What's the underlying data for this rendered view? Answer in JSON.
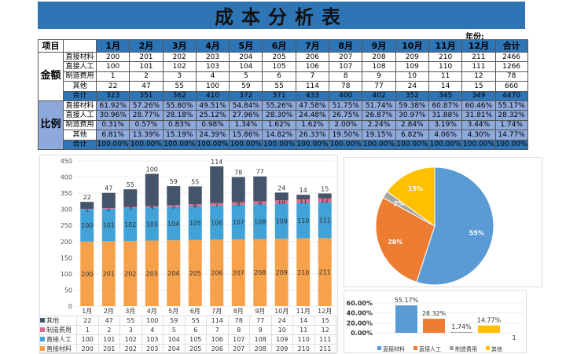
{
  "title": "成本分析表",
  "year_label": "年份:",
  "header": {
    "item": "项目",
    "months": [
      "1月",
      "2月",
      "3月",
      "4月",
      "5月",
      "6月",
      "7月",
      "8月",
      "9月",
      "10月",
      "11月",
      "12月"
    ],
    "total": "合计"
  },
  "amount": {
    "group": "金额",
    "rows": [
      {
        "label": "直接材料",
        "values": [
          "200",
          "201",
          "202",
          "203",
          "204",
          "205",
          "206",
          "207",
          "208",
          "209",
          "210",
          "211"
        ],
        "total": "2466"
      },
      {
        "label": "直接人工",
        "values": [
          "100",
          "101",
          "102",
          "103",
          "104",
          "105",
          "106",
          "107",
          "108",
          "109",
          "110",
          "111"
        ],
        "total": "1266"
      },
      {
        "label": "制造费用",
        "values": [
          "1",
          "2",
          "3",
          "4",
          "5",
          "6",
          "7",
          "8",
          "9",
          "10",
          "11",
          "12"
        ],
        "total": "78"
      },
      {
        "label": "其他",
        "values": [
          "22",
          "47",
          "55",
          "100",
          "59",
          "55",
          "114",
          "78",
          "77",
          "24",
          "14",
          "15"
        ],
        "total": "660"
      },
      {
        "label": "合计",
        "values": [
          "323",
          "351",
          "362",
          "410",
          "372",
          "371",
          "433",
          "400",
          "402",
          "352",
          "345",
          "349"
        ],
        "total": "4470"
      }
    ]
  },
  "ratio": {
    "group": "比例",
    "rows": [
      {
        "label": "直接材料",
        "values": [
          "61.92%",
          "57.26%",
          "55.80%",
          "49.51%",
          "54.84%",
          "55.26%",
          "47.58%",
          "51.75%",
          "51.74%",
          "59.38%",
          "60.87%",
          "60.46%"
        ],
        "total": "55.17%"
      },
      {
        "label": "直接人工",
        "values": [
          "30.96%",
          "28.77%",
          "28.18%",
          "25.12%",
          "27.96%",
          "28.30%",
          "24.48%",
          "26.75%",
          "26.87%",
          "30.97%",
          "31.88%",
          "31.81%"
        ],
        "total": "28.32%"
      },
      {
        "label": "制造费用",
        "values": [
          "0.31%",
          "0.57%",
          "0.83%",
          "0.98%",
          "1.34%",
          "1.62%",
          "1.62%",
          "2.00%",
          "2.24%",
          "2.84%",
          "3.19%",
          "3.44%"
        ],
        "total": "1.74%"
      },
      {
        "label": "其他",
        "values": [
          "6.81%",
          "13.39%",
          "15.19%",
          "24.39%",
          "15.86%",
          "14.82%",
          "26.33%",
          "19.50%",
          "19.15%",
          "6.82%",
          "4.06%",
          "4.30%"
        ],
        "total": "14.77%"
      },
      {
        "label": "合计",
        "values": [
          "100.00%",
          "100.00%",
          "100.00%",
          "100.00%",
          "100.00%",
          "100.00%",
          "100.00%",
          "100.00%",
          "100.00%",
          "100.00%",
          "100.00%",
          "100.00%"
        ],
        "total": "100.00%"
      }
    ]
  },
  "chart_data": [
    {
      "type": "bar",
      "stacked": true,
      "categories": [
        "1月",
        "2月",
        "3月",
        "4月",
        "5月",
        "6月",
        "7月",
        "8月",
        "9月",
        "10月",
        "11月",
        "12月"
      ],
      "ylim": [
        0,
        450
      ],
      "yticks": [
        "0",
        "50",
        "100",
        "150",
        "200",
        "250",
        "300",
        "350",
        "400",
        "450"
      ],
      "series": [
        {
          "name": "直接材料",
          "color": "#F7A24B",
          "values": [
            200,
            201,
            202,
            203,
            204,
            205,
            206,
            207,
            208,
            209,
            210,
            211
          ]
        },
        {
          "name": "直接人工",
          "color": "#41A2D8",
          "values": [
            100,
            101,
            102,
            103,
            104,
            105,
            106,
            107,
            108,
            109,
            110,
            111
          ]
        },
        {
          "name": "制造费用",
          "color": "#E06A8E",
          "values": [
            1,
            2,
            3,
            4,
            5,
            6,
            7,
            8,
            9,
            10,
            11,
            12
          ]
        },
        {
          "name": "其他",
          "color": "#44546A",
          "values": [
            22,
            47,
            55,
            100,
            59,
            55,
            114,
            78,
            77,
            24,
            14,
            15
          ]
        }
      ]
    },
    {
      "type": "pie",
      "labels": [
        "直接材料",
        "直接人工",
        "制造费用",
        "其他"
      ],
      "values": [
        55,
        28,
        2,
        15
      ],
      "data_labels": [
        "55%",
        "28%",
        "2%",
        "15%"
      ],
      "colors": [
        "#5B9BD5",
        "#ED7D31",
        "#A5A5A5",
        "#FFC000"
      ]
    },
    {
      "type": "bar",
      "categories": [
        "1"
      ],
      "ylim": [
        0,
        0.6
      ],
      "yticks": [
        "0.00%",
        "20.00%",
        "40.00%",
        "60.00%"
      ],
      "series": [
        {
          "name": "直接材料",
          "value": 0.5517,
          "label": "55.17%",
          "color": "#5B9BD5"
        },
        {
          "name": "直接人工",
          "value": 0.2832,
          "label": "28.32%",
          "color": "#ED7D31"
        },
        {
          "name": "制造费用",
          "value": 0.0174,
          "label": "1.74%",
          "color": "#A5A5A5"
        },
        {
          "name": "其他",
          "value": 0.1477,
          "label": "14.77%",
          "color": "#FFC000"
        }
      ]
    }
  ]
}
